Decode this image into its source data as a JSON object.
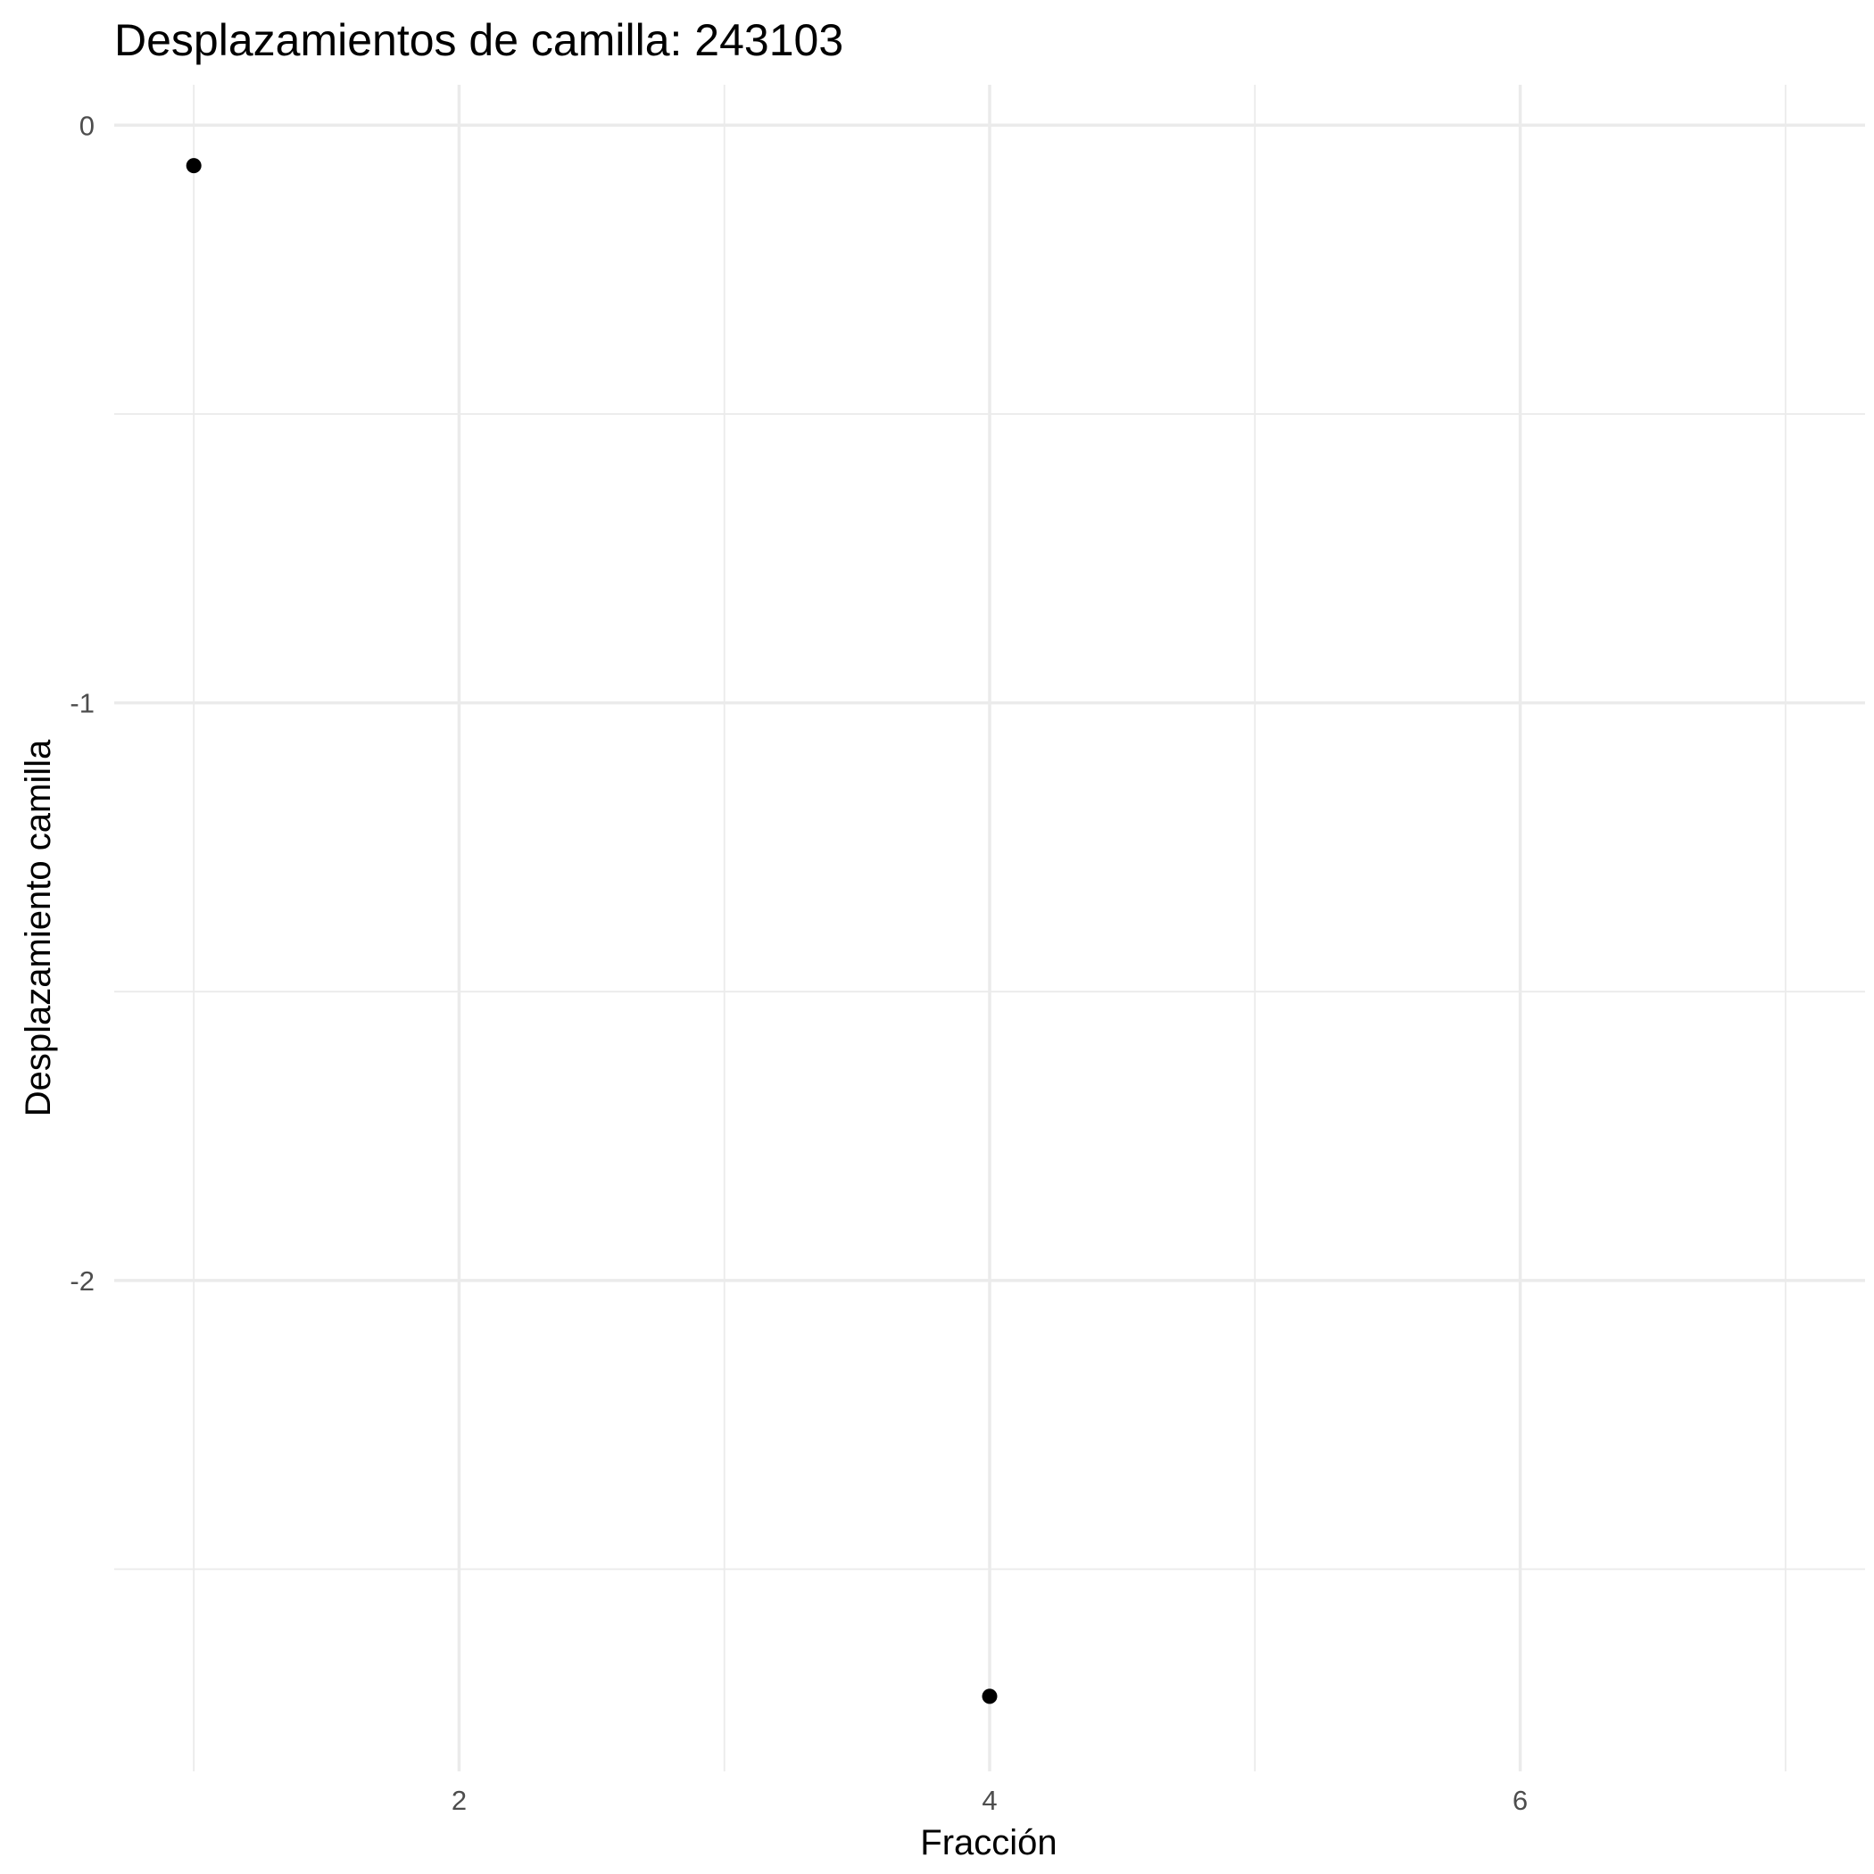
{
  "chart_data": {
    "type": "scatter",
    "title": "Desplazamientos de camilla: 243103",
    "xlabel": "Fracción",
    "ylabel": "Desplazamiento camilla",
    "xlim": [
      0.7,
      7.3
    ],
    "ylim": [
      -2.85,
      0.07
    ],
    "x_ticks": [
      2,
      4,
      6
    ],
    "x_tick_labels": [
      "2",
      "4",
      "6"
    ],
    "x_minor_ticks": [
      1,
      3,
      5,
      7
    ],
    "y_ticks": [
      0,
      -1,
      -2
    ],
    "y_tick_labels": [
      "0",
      "-1",
      "-2"
    ],
    "y_minor_ticks": [
      -0.5,
      -1.5,
      -2.5
    ],
    "grid": true,
    "legend": "none",
    "point_color": "#000000",
    "series": [
      {
        "x": [
          1,
          4
        ],
        "y": [
          -0.07,
          -2.72
        ]
      }
    ]
  }
}
